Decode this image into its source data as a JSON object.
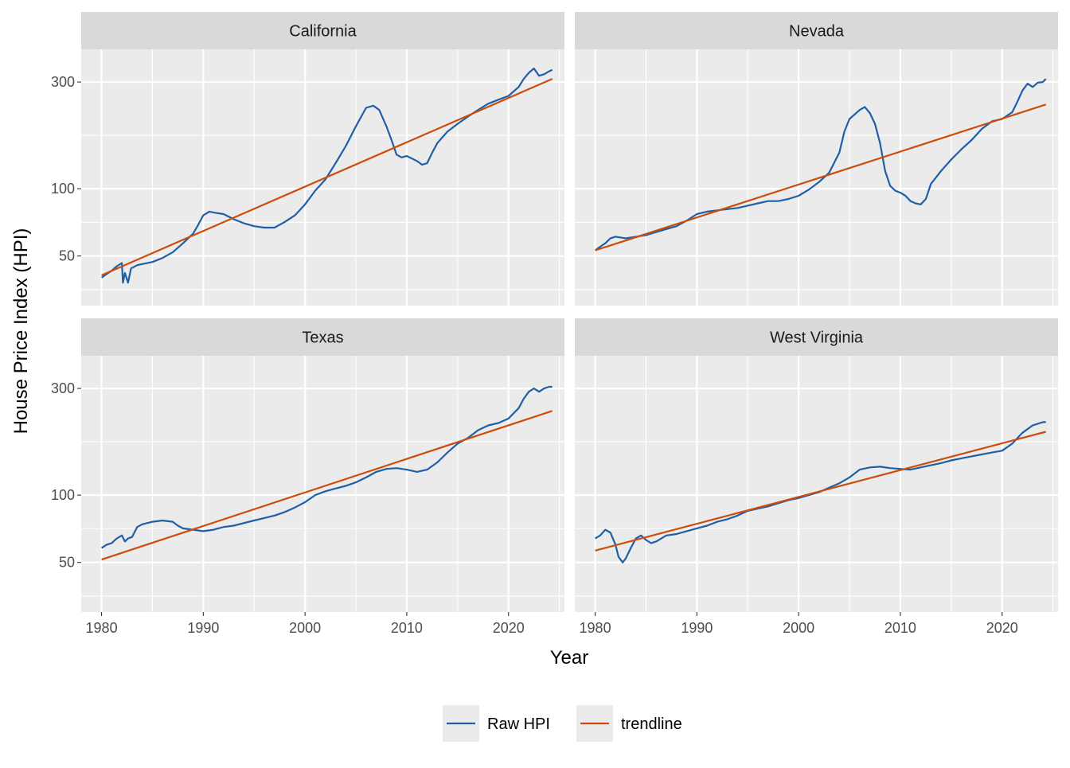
{
  "chart_data": {
    "type": "line",
    "facet_layout": "2x2 grid",
    "xlabel": "Year",
    "ylabel": "House Price Index (HPI)",
    "x_scale": "linear",
    "y_scale": "log",
    "xlim": [
      1978,
      2025.5
    ],
    "ylim": [
      30,
      420
    ],
    "x_ticks": [
      1980,
      1990,
      2000,
      2010,
      2020
    ],
    "y_ticks": [
      50,
      100,
      300
    ],
    "grid": true,
    "legend_position": "bottom",
    "legend": [
      {
        "label": "Raw HPI",
        "color": "#1f5fa6"
      },
      {
        "label": "trendline",
        "color": "#cc4c0b"
      }
    ],
    "facets": [
      {
        "label": "California",
        "raw_hpi": [
          [
            1980,
            40
          ],
          [
            1980.5,
            41.5
          ],
          [
            1981,
            43
          ],
          [
            1981.5,
            45
          ],
          [
            1982,
            46.5
          ],
          [
            1982.1,
            38
          ],
          [
            1982.3,
            42
          ],
          [
            1982.6,
            38
          ],
          [
            1982.9,
            44
          ],
          [
            1983.5,
            45.5
          ],
          [
            1984,
            46
          ],
          [
            1985,
            47
          ],
          [
            1986,
            49
          ],
          [
            1987,
            52
          ],
          [
            1988,
            57
          ],
          [
            1989,
            63
          ],
          [
            1989.5,
            69
          ],
          [
            1990,
            76
          ],
          [
            1990.6,
            79
          ],
          [
            1991.2,
            78
          ],
          [
            1992,
            77
          ],
          [
            1993,
            73
          ],
          [
            1994,
            70
          ],
          [
            1995,
            68
          ],
          [
            1996,
            67
          ],
          [
            1997,
            67
          ],
          [
            1998,
            71
          ],
          [
            1999,
            76
          ],
          [
            2000,
            85
          ],
          [
            2001,
            98
          ],
          [
            2002,
            110
          ],
          [
            2003,
            130
          ],
          [
            2004,
            155
          ],
          [
            2005,
            190
          ],
          [
            2006,
            230
          ],
          [
            2006.7,
            235
          ],
          [
            2007.3,
            225
          ],
          [
            2008,
            190
          ],
          [
            2008.5,
            165
          ],
          [
            2009,
            142
          ],
          [
            2009.5,
            138
          ],
          [
            2010,
            140
          ],
          [
            2011,
            133
          ],
          [
            2011.5,
            128
          ],
          [
            2012,
            130
          ],
          [
            2012.5,
            145
          ],
          [
            2013,
            160
          ],
          [
            2014,
            180
          ],
          [
            2015,
            195
          ],
          [
            2016,
            210
          ],
          [
            2017,
            225
          ],
          [
            2018,
            240
          ],
          [
            2019,
            250
          ],
          [
            2020,
            260
          ],
          [
            2021,
            285
          ],
          [
            2021.5,
            310
          ],
          [
            2022,
            330
          ],
          [
            2022.5,
            345
          ],
          [
            2023,
            320
          ],
          [
            2023.5,
            325
          ],
          [
            2024,
            335
          ],
          [
            2024.3,
            340
          ]
        ],
        "trendline": [
          [
            1980,
            41
          ],
          [
            2024.3,
            310
          ]
        ]
      },
      {
        "label": "Nevada",
        "raw_hpi": [
          [
            1980,
            53
          ],
          [
            1980.5,
            55
          ],
          [
            1981,
            57
          ],
          [
            1981.5,
            60
          ],
          [
            1982,
            61
          ],
          [
            1983,
            60
          ],
          [
            1984,
            61
          ],
          [
            1985,
            62
          ],
          [
            1986,
            64
          ],
          [
            1987,
            66
          ],
          [
            1988,
            68
          ],
          [
            1989,
            72
          ],
          [
            1990,
            77
          ],
          [
            1991,
            79
          ],
          [
            1992,
            80
          ],
          [
            1993,
            81
          ],
          [
            1994,
            82
          ],
          [
            1995,
            84
          ],
          [
            1996,
            86
          ],
          [
            1997,
            88
          ],
          [
            1998,
            88
          ],
          [
            1999,
            90
          ],
          [
            2000,
            93
          ],
          [
            2001,
            99
          ],
          [
            2002,
            107
          ],
          [
            2003,
            118
          ],
          [
            2004,
            145
          ],
          [
            2004.5,
            180
          ],
          [
            2005,
            205
          ],
          [
            2006,
            225
          ],
          [
            2006.5,
            232
          ],
          [
            2007,
            218
          ],
          [
            2007.5,
            195
          ],
          [
            2008,
            160
          ],
          [
            2008.5,
            120
          ],
          [
            2009,
            103
          ],
          [
            2009.5,
            98
          ],
          [
            2010,
            96
          ],
          [
            2010.5,
            93
          ],
          [
            2011,
            88
          ],
          [
            2011.5,
            86
          ],
          [
            2012,
            85
          ],
          [
            2012.5,
            90
          ],
          [
            2013,
            105
          ],
          [
            2014,
            120
          ],
          [
            2015,
            135
          ],
          [
            2016,
            150
          ],
          [
            2017,
            165
          ],
          [
            2018,
            185
          ],
          [
            2019,
            200
          ],
          [
            2020,
            205
          ],
          [
            2021,
            220
          ],
          [
            2021.5,
            245
          ],
          [
            2022,
            275
          ],
          [
            2022.5,
            295
          ],
          [
            2023,
            285
          ],
          [
            2023.5,
            298
          ],
          [
            2024,
            300
          ],
          [
            2024.3,
            310
          ]
        ],
        "trendline": [
          [
            1980,
            53
          ],
          [
            2024.3,
            238
          ]
        ]
      },
      {
        "label": "Texas",
        "raw_hpi": [
          [
            1980,
            58
          ],
          [
            1980.5,
            60
          ],
          [
            1981,
            61
          ],
          [
            1981.5,
            64
          ],
          [
            1982,
            66
          ],
          [
            1982.3,
            62
          ],
          [
            1982.6,
            64
          ],
          [
            1983,
            65
          ],
          [
            1983.5,
            72
          ],
          [
            1984,
            74
          ],
          [
            1985,
            76
          ],
          [
            1986,
            77
          ],
          [
            1987,
            76
          ],
          [
            1987.5,
            73
          ],
          [
            1988,
            71
          ],
          [
            1989,
            70
          ],
          [
            1990,
            69
          ],
          [
            1991,
            70
          ],
          [
            1992,
            72
          ],
          [
            1993,
            73
          ],
          [
            1994,
            75
          ],
          [
            1995,
            77
          ],
          [
            1996,
            79
          ],
          [
            1997,
            81
          ],
          [
            1998,
            84
          ],
          [
            1999,
            88
          ],
          [
            2000,
            93
          ],
          [
            2001,
            100
          ],
          [
            2002,
            104
          ],
          [
            2003,
            107
          ],
          [
            2004,
            110
          ],
          [
            2005,
            114
          ],
          [
            2006,
            120
          ],
          [
            2007,
            127
          ],
          [
            2008,
            131
          ],
          [
            2009,
            132
          ],
          [
            2010,
            130
          ],
          [
            2011,
            127
          ],
          [
            2012,
            130
          ],
          [
            2013,
            140
          ],
          [
            2014,
            155
          ],
          [
            2015,
            170
          ],
          [
            2016,
            180
          ],
          [
            2017,
            195
          ],
          [
            2018,
            205
          ],
          [
            2019,
            210
          ],
          [
            2020,
            220
          ],
          [
            2021,
            245
          ],
          [
            2021.5,
            270
          ],
          [
            2022,
            290
          ],
          [
            2022.5,
            300
          ],
          [
            2023,
            290
          ],
          [
            2023.5,
            300
          ],
          [
            2024,
            305
          ],
          [
            2024.3,
            305
          ]
        ],
        "trendline": [
          [
            1980,
            51.5
          ],
          [
            2024.3,
            238
          ]
        ]
      },
      {
        "label": "West Virginia",
        "raw_hpi": [
          [
            1980,
            64
          ],
          [
            1980.5,
            66
          ],
          [
            1981,
            70
          ],
          [
            1981.5,
            68
          ],
          [
            1982,
            60
          ],
          [
            1982.3,
            53
          ],
          [
            1982.7,
            50
          ],
          [
            1983,
            52
          ],
          [
            1983.5,
            58
          ],
          [
            1984,
            64
          ],
          [
            1984.5,
            66
          ],
          [
            1985,
            63
          ],
          [
            1985.5,
            61
          ],
          [
            1986,
            62
          ],
          [
            1986.5,
            64
          ],
          [
            1987,
            66
          ],
          [
            1988,
            67
          ],
          [
            1989,
            69
          ],
          [
            1990,
            71
          ],
          [
            1991,
            73
          ],
          [
            1992,
            76
          ],
          [
            1993,
            78
          ],
          [
            1994,
            81
          ],
          [
            1995,
            85
          ],
          [
            1996,
            87
          ],
          [
            1997,
            89
          ],
          [
            1998,
            92
          ],
          [
            1999,
            95
          ],
          [
            2000,
            97
          ],
          [
            2001,
            100
          ],
          [
            2002,
            103
          ],
          [
            2003,
            108
          ],
          [
            2004,
            113
          ],
          [
            2005,
            120
          ],
          [
            2006,
            130
          ],
          [
            2007,
            133
          ],
          [
            2008,
            134
          ],
          [
            2009,
            132
          ],
          [
            2010,
            131
          ],
          [
            2011,
            130
          ],
          [
            2012,
            133
          ],
          [
            2013,
            136
          ],
          [
            2014,
            139
          ],
          [
            2015,
            143
          ],
          [
            2016,
            146
          ],
          [
            2017,
            149
          ],
          [
            2018,
            152
          ],
          [
            2019,
            155
          ],
          [
            2020,
            158
          ],
          [
            2021,
            170
          ],
          [
            2022,
            190
          ],
          [
            2023,
            205
          ],
          [
            2024,
            212
          ],
          [
            2024.3,
            212
          ]
        ],
        "trendline": [
          [
            1980,
            56.5
          ],
          [
            2024.3,
            192
          ]
        ]
      }
    ]
  }
}
